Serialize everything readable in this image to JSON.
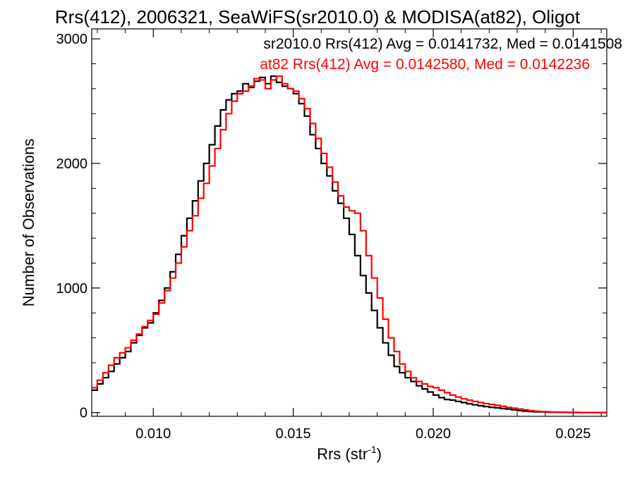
{
  "chart_data": {
    "type": "line",
    "step": true,
    "title": "Rrs(412), 2006321, SeaWiFS(sr2010.0) & MODISA(at82), Oligot",
    "xlabel": "Rrs (str",
    "xlabel_sup": "-1",
    "xlabel_close": ")",
    "ylabel": "Number of Observations",
    "xlim": [
      0.0078,
      0.0262
    ],
    "ylim": [
      -30,
      3080
    ],
    "x_ticks": [
      0.01,
      0.015,
      0.02,
      0.025
    ],
    "x_tick_labels": [
      "0.010",
      "0.015",
      "0.020",
      "0.025"
    ],
    "y_ticks": [
      0,
      1000,
      2000,
      3000
    ],
    "y_tick_labels": [
      "0",
      "1000",
      "2000",
      "3000"
    ],
    "grid": false,
    "legend_position": "top-right",
    "series": [
      {
        "name": "sr2010.0 Rrs(412) Avg = 0.0141732, Med = 0.0141508",
        "color": "#000000",
        "x": [
          0.0078,
          0.008,
          0.0082,
          0.0084,
          0.0086,
          0.0088,
          0.009,
          0.0092,
          0.0094,
          0.0096,
          0.0098,
          0.01,
          0.0102,
          0.0104,
          0.0106,
          0.0108,
          0.011,
          0.0112,
          0.0114,
          0.0116,
          0.0118,
          0.012,
          0.0122,
          0.0124,
          0.0126,
          0.0128,
          0.013,
          0.0132,
          0.0134,
          0.0136,
          0.0138,
          0.014,
          0.0142,
          0.0144,
          0.0146,
          0.0148,
          0.015,
          0.0152,
          0.0154,
          0.0156,
          0.0158,
          0.016,
          0.0162,
          0.0164,
          0.0166,
          0.0168,
          0.017,
          0.0172,
          0.0174,
          0.0176,
          0.0178,
          0.018,
          0.0182,
          0.0184,
          0.0186,
          0.0188,
          0.019,
          0.0192,
          0.0194,
          0.0196,
          0.0198,
          0.02,
          0.0202,
          0.0204,
          0.0206,
          0.0208,
          0.021,
          0.0212,
          0.0214,
          0.0216,
          0.0218,
          0.022,
          0.0222,
          0.0224,
          0.0226,
          0.0228,
          0.023,
          0.0232,
          0.0234,
          0.0236,
          0.0238,
          0.024,
          0.0242,
          0.0244,
          0.0246,
          0.0248,
          0.025,
          0.0252,
          0.0254,
          0.0256,
          0.0258,
          0.026
        ],
        "y": [
          180,
          230,
          280,
          330,
          390,
          440,
          490,
          560,
          620,
          680,
          720,
          800,
          900,
          1000,
          1130,
          1270,
          1420,
          1560,
          1700,
          1860,
          2000,
          2150,
          2300,
          2430,
          2510,
          2560,
          2580,
          2640,
          2610,
          2660,
          2690,
          2640,
          2700,
          2650,
          2620,
          2600,
          2560,
          2480,
          2380,
          2230,
          2120,
          2000,
          1900,
          1780,
          1680,
          1560,
          1430,
          1260,
          1100,
          960,
          820,
          680,
          560,
          460,
          370,
          320,
          280,
          250,
          215,
          190,
          165,
          140,
          120,
          105,
          100,
          90,
          80,
          70,
          62,
          55,
          48,
          42,
          38,
          32,
          28,
          22,
          16,
          12,
          8,
          6,
          5,
          4,
          3,
          2,
          2,
          1,
          1,
          0,
          0,
          0,
          0,
          0
        ]
      },
      {
        "name": "at82 Rrs(412) Avg = 0.0142580, Med = 0.0142236",
        "color": "#ff0000",
        "x": [
          0.0078,
          0.008,
          0.0082,
          0.0084,
          0.0086,
          0.0088,
          0.009,
          0.0092,
          0.0094,
          0.0096,
          0.0098,
          0.01,
          0.0102,
          0.0104,
          0.0106,
          0.0108,
          0.011,
          0.0112,
          0.0114,
          0.0116,
          0.0118,
          0.012,
          0.0122,
          0.0124,
          0.0126,
          0.0128,
          0.013,
          0.0132,
          0.0134,
          0.0136,
          0.0138,
          0.014,
          0.0142,
          0.0144,
          0.0146,
          0.0148,
          0.015,
          0.0152,
          0.0154,
          0.0156,
          0.0158,
          0.016,
          0.0162,
          0.0164,
          0.0166,
          0.0168,
          0.017,
          0.0172,
          0.0174,
          0.0176,
          0.0178,
          0.018,
          0.0182,
          0.0184,
          0.0186,
          0.0188,
          0.019,
          0.0192,
          0.0194,
          0.0196,
          0.0198,
          0.02,
          0.0202,
          0.0204,
          0.0206,
          0.0208,
          0.021,
          0.0212,
          0.0214,
          0.0216,
          0.0218,
          0.022,
          0.0222,
          0.0224,
          0.0226,
          0.0228,
          0.023,
          0.0232,
          0.0234,
          0.0236,
          0.0238,
          0.024,
          0.0242,
          0.0244,
          0.0246,
          0.0248,
          0.025,
          0.0252,
          0.0254,
          0.0256,
          0.0258,
          0.026
        ],
        "y": [
          200,
          260,
          320,
          380,
          440,
          480,
          520,
          580,
          630,
          690,
          740,
          790,
          880,
          980,
          1080,
          1200,
          1330,
          1460,
          1580,
          1720,
          1840,
          1980,
          2120,
          2270,
          2400,
          2500,
          2560,
          2580,
          2620,
          2680,
          2670,
          2600,
          2670,
          2700,
          2640,
          2600,
          2580,
          2520,
          2440,
          2320,
          2200,
          2080,
          1970,
          1850,
          1740,
          1650,
          1620,
          1600,
          1460,
          1260,
          1080,
          920,
          750,
          600,
          490,
          390,
          330,
          280,
          250,
          230,
          210,
          200,
          180,
          160,
          140,
          125,
          110,
          100,
          90,
          80,
          72,
          65,
          58,
          50,
          42,
          35,
          28,
          22,
          16,
          11,
          8,
          6,
          4,
          3,
          2,
          1,
          1,
          0,
          0,
          0,
          0,
          0
        ]
      }
    ]
  }
}
